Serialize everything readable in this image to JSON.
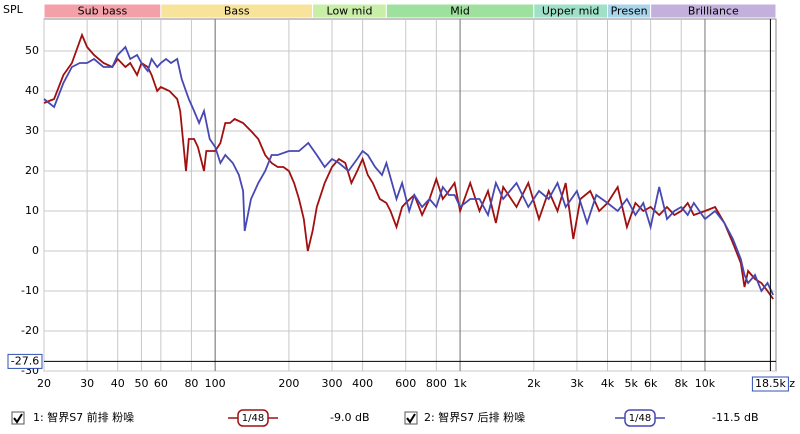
{
  "chart_data": {
    "type": "line",
    "y_label": "SPL",
    "x_unit": "Hz",
    "log_x": true,
    "grid": true,
    "xlim": [
      20,
      19500
    ],
    "ylim": [
      -30,
      58
    ],
    "xticks": [
      20,
      30,
      40,
      50,
      60,
      80,
      100,
      200,
      300,
      400,
      600,
      800,
      {
        "value": 1000,
        "label": "1k"
      },
      {
        "value": 2000,
        "label": "2k"
      },
      {
        "value": 3000,
        "label": "3k"
      },
      {
        "value": 4000,
        "label": "4k"
      },
      {
        "value": 5000,
        "label": "5k"
      },
      {
        "value": 6000,
        "label": "6k"
      },
      {
        "value": 8000,
        "label": "8k"
      },
      {
        "value": 10000,
        "label": "10k"
      }
    ],
    "major_xgrid": [
      100,
      1000,
      10000
    ],
    "yticks": [
      -30,
      -20,
      -10,
      0,
      10,
      20,
      30,
      40,
      50
    ],
    "cursor_x": {
      "value": 18500,
      "label": "18.5k"
    },
    "cursor_y": -27.6,
    "bands": [
      {
        "name": "Sub bass",
        "start": 20,
        "end": 60,
        "color": "#f4a0a8"
      },
      {
        "name": "Bass",
        "start": 60,
        "end": 250,
        "color": "#f8e39a"
      },
      {
        "name": "Low mid",
        "start": 250,
        "end": 500,
        "color": "#c8eea8"
      },
      {
        "name": "Mid",
        "start": 500,
        "end": 2000,
        "color": "#9ee09e"
      },
      {
        "name": "Upper mid",
        "start": 2000,
        "end": 4000,
        "color": "#9ee0c8"
      },
      {
        "name": "Presen",
        "start": 4000,
        "end": 6000,
        "color": "#a8d4ec"
      },
      {
        "name": "Brilliance",
        "start": 6000,
        "end": 19500,
        "color": "#c4b0dc"
      }
    ],
    "series": [
      {
        "name": "1: 智界S7 前排 粉噪",
        "color": "#a01010",
        "smoothing": "1/48",
        "offset": "-9.0 dB",
        "x": [
          20,
          22,
          24,
          26,
          28.6,
          30,
          32,
          35,
          38,
          40,
          43,
          45,
          48,
          50,
          53,
          55,
          58,
          60,
          65,
          70,
          72,
          76,
          78,
          82,
          85,
          90,
          92,
          100,
          105,
          110,
          115,
          120,
          130,
          140,
          150,
          160,
          170,
          180,
          190,
          200,
          210,
          220,
          230,
          239,
          250,
          260,
          280,
          300,
          320,
          340,
          360,
          380,
          400,
          420,
          440,
          470,
          500,
          520,
          550,
          580,
          600,
          650,
          700,
          750,
          800,
          850,
          900,
          950,
          1000,
          1100,
          1200,
          1300,
          1400,
          1500,
          1700,
          1900,
          2100,
          2300,
          2500,
          2700,
          2900,
          3100,
          3400,
          3700,
          4000,
          4400,
          4800,
          5200,
          5600,
          6000,
          6500,
          7000,
          7500,
          8000,
          8500,
          9000,
          10000,
          11000,
          12000,
          13000,
          14000,
          14500,
          15000,
          16000,
          17000,
          18000,
          19000
        ],
        "values": [
          37,
          38,
          44,
          47,
          54,
          51,
          49,
          47,
          46,
          48,
          46,
          47,
          44,
          47,
          46,
          44,
          40,
          41,
          40,
          38,
          35,
          20,
          28,
          28,
          26,
          20,
          25,
          25,
          27,
          32,
          32,
          33,
          32,
          30,
          28,
          24,
          22,
          21,
          21,
          20,
          17,
          13,
          8,
          0,
          5,
          11,
          17,
          21,
          23,
          22,
          17,
          20,
          23,
          19,
          17,
          13,
          12,
          10,
          6,
          11,
          12,
          14,
          9,
          13,
          18,
          13,
          15,
          17,
          10,
          17,
          10,
          15,
          7,
          16,
          11,
          17,
          8,
          15,
          10,
          17,
          3,
          13,
          15,
          10,
          12,
          16,
          6,
          12,
          10,
          11,
          9,
          11,
          9,
          10,
          12,
          9,
          10,
          11,
          7,
          2,
          -3,
          -9,
          -5,
          -7,
          -8,
          -10,
          -12
        ]
      },
      {
        "name": "2: 智界S7 后排 粉噪",
        "color": "#4848b4",
        "smoothing": "1/48",
        "offset": "-11.5 dB",
        "x": [
          20,
          22,
          24,
          26,
          28,
          30,
          32,
          35,
          38,
          40,
          43,
          45,
          48,
          50,
          53,
          55,
          58,
          60,
          63,
          66,
          70,
          73,
          78,
          82,
          86,
          90,
          95,
          100,
          105,
          110,
          118,
          125,
          130,
          132,
          140,
          150,
          160,
          170,
          180,
          200,
          220,
          240,
          260,
          280,
          300,
          320,
          350,
          380,
          400,
          420,
          450,
          480,
          500,
          550,
          580,
          620,
          650,
          700,
          750,
          800,
          850,
          900,
          950,
          1000,
          1100,
          1200,
          1300,
          1400,
          1500,
          1700,
          1900,
          2100,
          2300,
          2500,
          2700,
          3000,
          3300,
          3600,
          4000,
          4400,
          4800,
          5200,
          5600,
          6000,
          6500,
          7000,
          7500,
          8000,
          8500,
          9000,
          10000,
          11000,
          12000,
          13000,
          14000,
          14500,
          15000,
          16000,
          17000,
          18000,
          19000
        ],
        "values": [
          38,
          36,
          42,
          46,
          47,
          47,
          48,
          46,
          46,
          49,
          51,
          48,
          49,
          47,
          45,
          48,
          46,
          47,
          48,
          47,
          48,
          43,
          38,
          35,
          32,
          35,
          28,
          26,
          22,
          24,
          22,
          19,
          15,
          5,
          13,
          17,
          20,
          24,
          24,
          25,
          25,
          27,
          24,
          21,
          23,
          22,
          20,
          23,
          25,
          24,
          21,
          19,
          22,
          13,
          17,
          10,
          14,
          11,
          13,
          11,
          16,
          14,
          14,
          11,
          13,
          13,
          9,
          17,
          13,
          17,
          11,
          15,
          13,
          17,
          11,
          15,
          7,
          14,
          12,
          10,
          13,
          9,
          12,
          6,
          16,
          8,
          10,
          11,
          9,
          12,
          8,
          10,
          7,
          3,
          -2,
          -6,
          -8,
          -6,
          -10,
          -8,
          -11
        ]
      }
    ]
  }
}
